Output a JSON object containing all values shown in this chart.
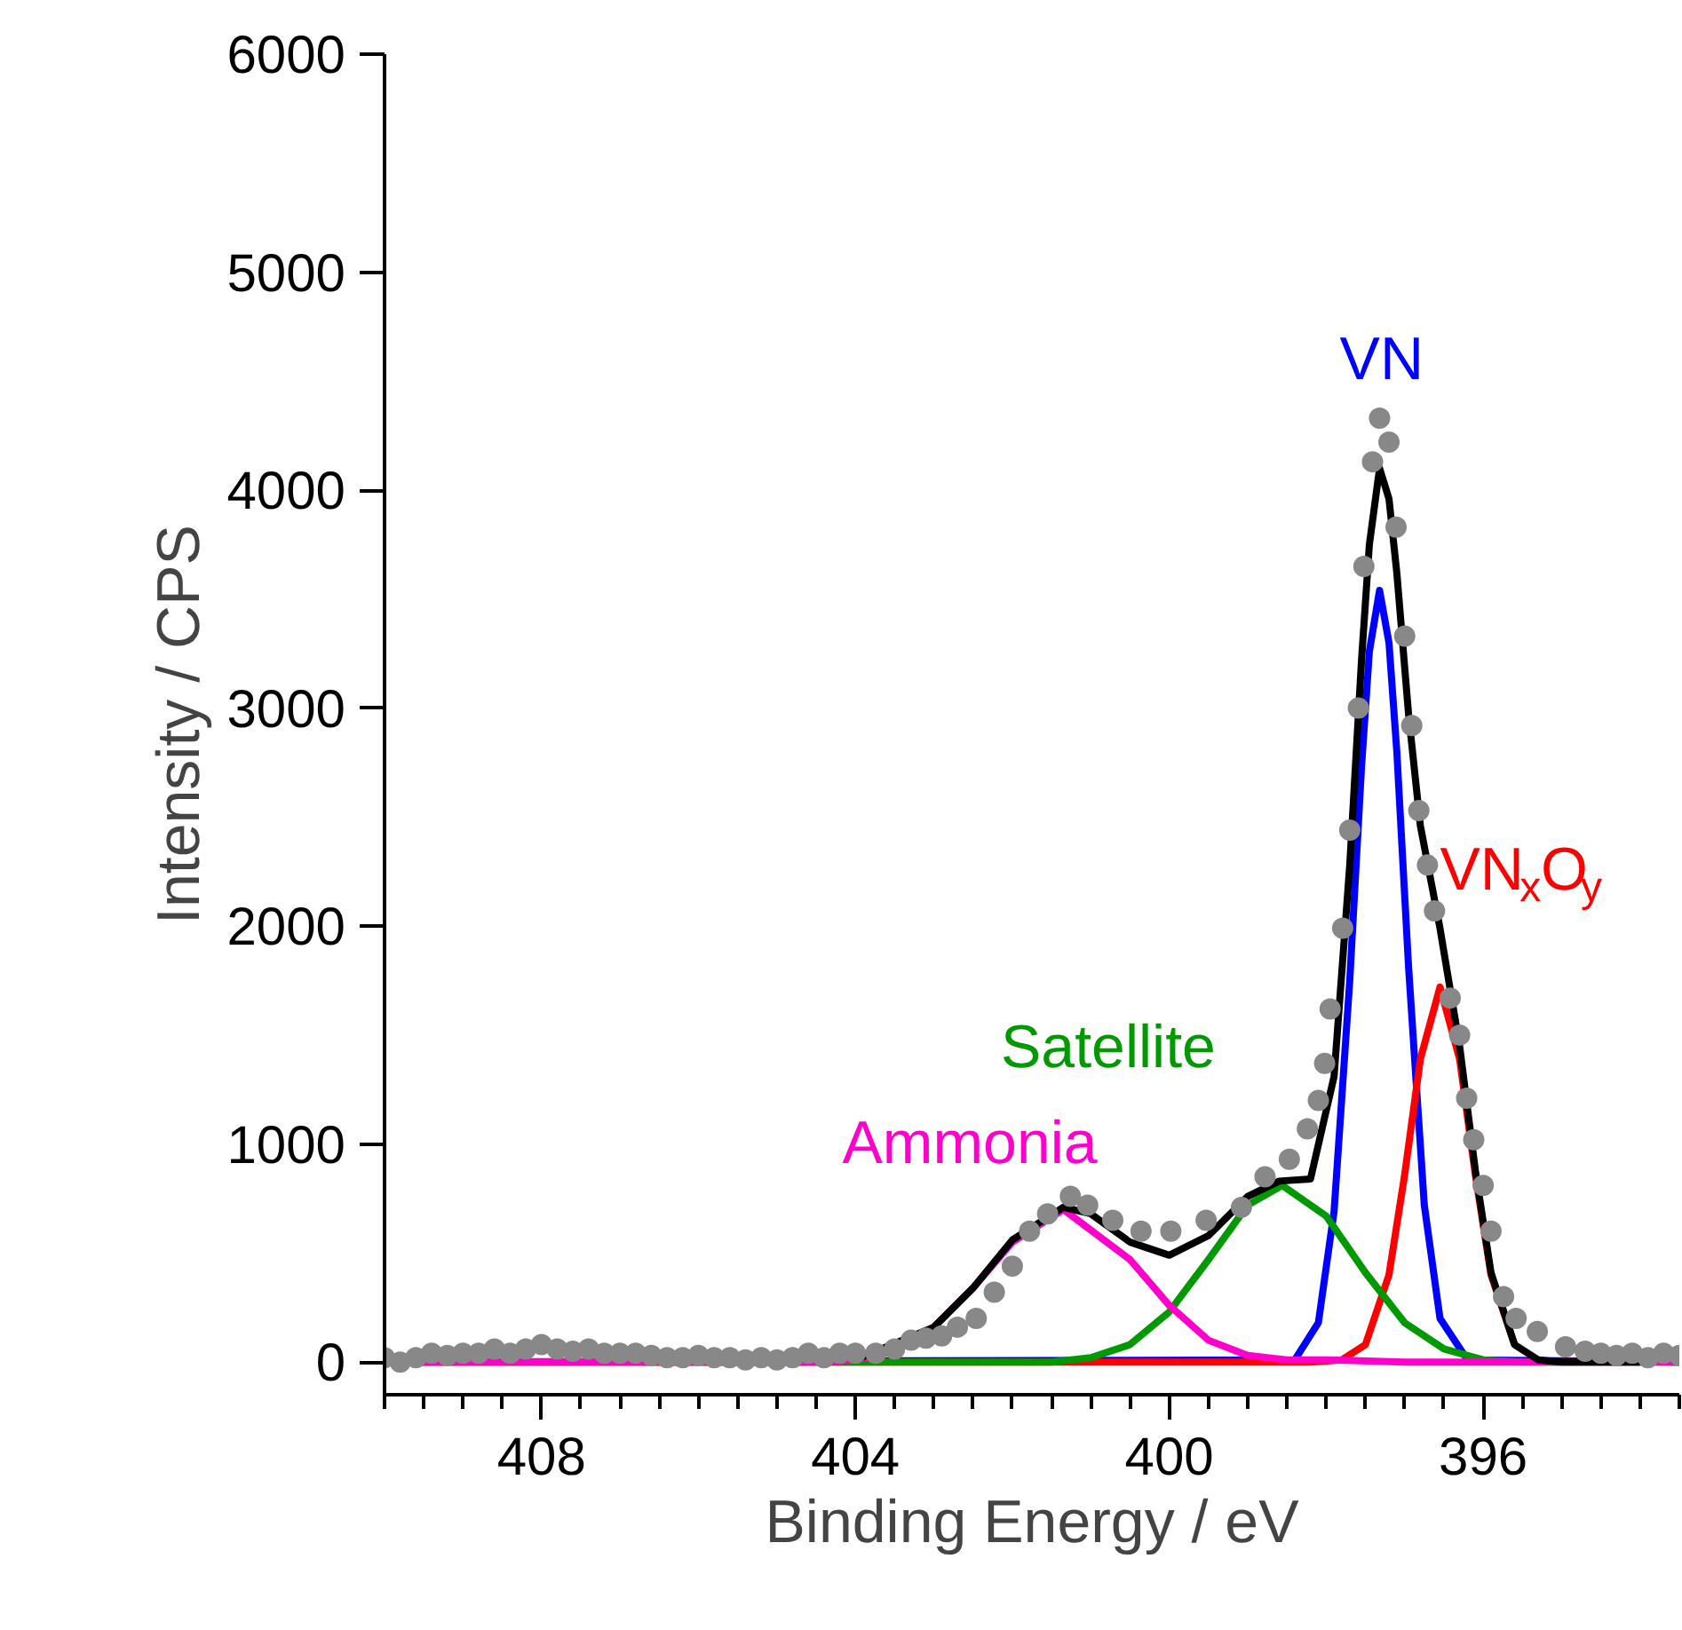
{
  "chart_data": {
    "type": "line",
    "xlabel": "Binding Energy / eV",
    "ylabel": "Intensity / CPS",
    "xlim": [
      410,
      393.5
    ],
    "ylim": [
      -150,
      6000
    ],
    "xticks": [
      {
        "value": 410,
        "label": null
      },
      {
        "value": 409.5,
        "label": null
      },
      {
        "value": 409,
        "label": null
      },
      {
        "value": 408.5,
        "label": null
      },
      408,
      {
        "value": 407.5,
        "label": null
      },
      {
        "value": 407,
        "label": null
      },
      {
        "value": 406.5,
        "label": null
      },
      {
        "value": 406,
        "label": null
      },
      {
        "value": 405.5,
        "label": null
      },
      {
        "value": 405,
        "label": null
      },
      {
        "value": 404.5,
        "label": null
      },
      404,
      {
        "value": 403.5,
        "label": null
      },
      {
        "value": 403,
        "label": null
      },
      {
        "value": 402.5,
        "label": null
      },
      {
        "value": 402,
        "label": null
      },
      {
        "value": 401.5,
        "label": null
      },
      {
        "value": 401,
        "label": null
      },
      {
        "value": 400.5,
        "label": null
      },
      400,
      {
        "value": 399.5,
        "label": null
      },
      {
        "value": 399,
        "label": null
      },
      {
        "value": 398.5,
        "label": null
      },
      {
        "value": 398,
        "label": null
      },
      {
        "value": 397.5,
        "label": null
      },
      {
        "value": 397,
        "label": null
      },
      {
        "value": 396.5,
        "label": null
      },
      396,
      {
        "value": 395.5,
        "label": null
      },
      {
        "value": 395,
        "label": null
      },
      {
        "value": 394.5,
        "label": null
      },
      {
        "value": 394,
        "label": null
      },
      {
        "value": 393.5,
        "label": null
      }
    ],
    "yticks": [
      0,
      1000,
      2000,
      3000,
      4000,
      5000,
      6000
    ],
    "grid": false,
    "legend": false,
    "series": [
      {
        "name": "VN",
        "color": "#0000ff",
        "x": [
          410,
          398.4,
          398.1,
          397.9,
          397.7,
          397.55,
          397.45,
          397.32,
          397.2,
          397.1,
          396.95,
          396.75,
          396.55,
          396.2,
          393.5
        ],
        "values": [
          0,
          10,
          180,
          690,
          1750,
          2730,
          3260,
          3540,
          3300,
          2800,
          1810,
          720,
          200,
          10,
          0
        ]
      },
      {
        "name": "VN$_{x}$O$_{y}$",
        "color": "#ff0000",
        "x": [
          410,
          398.2,
          397.8,
          397.5,
          397.2,
          397.0,
          396.8,
          396.55,
          396.3,
          396.1,
          395.9,
          395.6
        ],
        "values": [
          0,
          0,
          10,
          80,
          400,
          860,
          1390,
          1720,
          1390,
          860,
          400,
          80
        ]
      },
      {
        "name": "Satellite",
        "color": "#009900",
        "x": [
          410,
          401.5,
          401,
          400.5,
          400,
          399.5,
          399,
          398.56,
          398,
          397.5,
          397,
          396.5,
          396,
          395.5,
          393.5
        ],
        "values": [
          0,
          0,
          20,
          80,
          230,
          470,
          720,
          810,
          670,
          410,
          180,
          60,
          10,
          0,
          0
        ]
      },
      {
        "name": "Ammonia",
        "color": "#ff00cc",
        "x": [
          410,
          404.5,
          404,
          403.5,
          403,
          402.5,
          402,
          401.35,
          400.5,
          400,
          399.5,
          399,
          398.5,
          398,
          397,
          393.5
        ],
        "values": [
          0,
          0,
          10,
          50,
          160,
          340,
          550,
          700,
          470,
          260,
          100,
          30,
          10,
          10,
          0,
          0
        ]
      },
      {
        "color": "#000000",
        "x": [
          404,
          403,
          402.5,
          402,
          401.35,
          401,
          400.5,
          400,
          399.5,
          399,
          398.6,
          398.2,
          397.9,
          397.7,
          397.55,
          397.45,
          397.32,
          397.2,
          397.1,
          396.95,
          396.8,
          396.55,
          396.3,
          396.1,
          395.9,
          395.6,
          395.3,
          395,
          394
        ],
        "values": [
          10,
          160,
          340,
          560,
          710,
          680,
          550,
          490,
          580,
          760,
          830,
          840,
          1310,
          2280,
          3220,
          3750,
          4100,
          3960,
          3620,
          2970,
          2460,
          1990,
          1450,
          880,
          410,
          80,
          10,
          0,
          0
        ]
      },
      {
        "type": "scatter",
        "marker": "circle",
        "color": "#888888",
        "x": [
          410,
          409.8,
          409.6,
          409.4,
          409.2,
          409,
          408.8,
          408.6,
          408.4,
          408.2,
          408,
          407.8,
          407.6,
          407.4,
          407.2,
          407,
          406.8,
          406.6,
          406.4,
          406.2,
          406,
          405.8,
          405.6,
          405.4,
          405.2,
          405,
          404.8,
          404.6,
          404.4,
          404.2,
          404,
          403.74,
          403.5,
          403.29,
          403.1,
          402.9,
          402.7,
          402.46,
          402.23,
          402.0,
          401.78,
          401.55,
          401.26,
          401.04,
          400.72,
          400.36,
          399.98,
          399.53,
          399.08,
          398.78,
          398.47,
          398.24,
          398.1,
          398.02,
          397.95,
          397.79,
          397.7,
          397.59,
          397.52,
          397.41,
          397.32,
          397.2,
          397.11,
          397.0,
          396.91,
          396.82,
          396.71,
          396.62,
          396.42,
          396.3,
          396.21,
          396.12,
          396.0,
          395.9,
          395.74,
          395.58,
          395.31,
          394.95,
          394.7,
          394.5,
          394.3,
          394.1,
          393.9,
          393.7,
          393.5
        ],
        "values": [
          20,
          0,
          20,
          40,
          30,
          40,
          40,
          60,
          40,
          60,
          80,
          60,
          50,
          60,
          40,
          40,
          40,
          30,
          20,
          20,
          30,
          20,
          20,
          10,
          20,
          10,
          20,
          40,
          20,
          40,
          40,
          40,
          60,
          100,
          110,
          120,
          160,
          200,
          320,
          440,
          600,
          680,
          760,
          720,
          650,
          600,
          600,
          650,
          710,
          850,
          930,
          1070,
          1200,
          1370,
          1620,
          1990,
          2440,
          3000,
          3650,
          4130,
          4330,
          4220,
          3830,
          3330,
          2920,
          2530,
          2280,
          2070,
          1670,
          1500,
          1210,
          1020,
          810,
          600,
          300,
          200,
          140,
          70,
          50,
          40,
          30,
          40,
          20,
          40,
          30
        ]
      }
    ]
  }
}
